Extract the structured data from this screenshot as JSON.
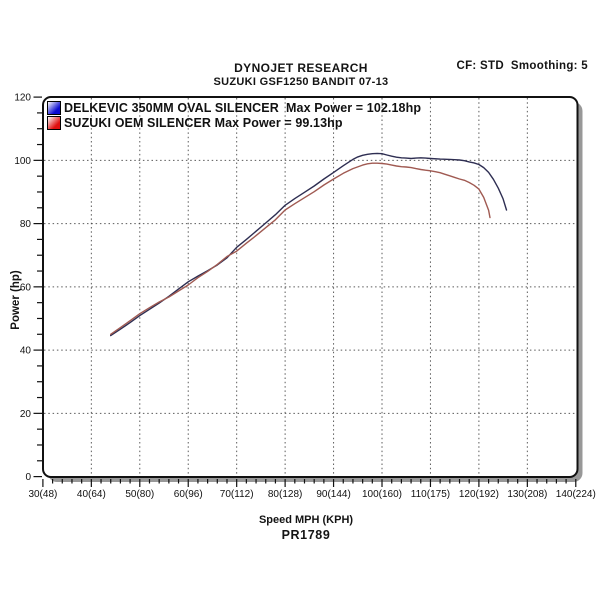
{
  "header": {
    "title": "DYNOJET RESEARCH",
    "subtitle": "SUZUKI GSF1250 BANDIT 07-13",
    "settings": "CF: STD  Smoothing: 5"
  },
  "footer": {
    "plot_id": "PR1789"
  },
  "chart_data": {
    "type": "line",
    "title": "DYNOJET RESEARCH",
    "subtitle": "SUZUKI GSF1250 BANDIT 07-13",
    "xlabel": "Speed MPH (KPH)",
    "ylabel": "Power (hp)",
    "xlim": [
      30,
      140
    ],
    "ylim": [
      0,
      120
    ],
    "grid": {
      "style": "dashed",
      "x_major_step_mph": 10,
      "y_major_step_hp": 20
    },
    "x_minor_tick_step_mph": 2,
    "y_minor_tick_step_hp": 5,
    "legend_position": "top-left-inside",
    "x_ticks": [
      {
        "value": 30,
        "label": "30(48)"
      },
      {
        "value": 40,
        "label": "40(64)"
      },
      {
        "value": 50,
        "label": "50(80)"
      },
      {
        "value": 60,
        "label": "60(96)"
      },
      {
        "value": 70,
        "label": "70(112)"
      },
      {
        "value": 80,
        "label": "80(128)"
      },
      {
        "value": 90,
        "label": "90(144)"
      },
      {
        "value": 100,
        "label": "100(160)"
      },
      {
        "value": 110,
        "label": "110(175)"
      },
      {
        "value": 120,
        "label": "120(192)"
      },
      {
        "value": 130,
        "label": "130(208)"
      },
      {
        "value": 140,
        "label": "140(224)"
      }
    ],
    "y_ticks": [
      0,
      20,
      40,
      60,
      80,
      100,
      120
    ],
    "series": [
      {
        "name": "DELKEVIC 350MM OVAL SILENCER",
        "legend_label": "DELKEVIC 350MM OVAL SILENCER  Max Power = 102.18hp",
        "max_power_hp": 102.18,
        "line_color": "#2e2e52",
        "marker_color": "#0a0ad0",
        "points_mph_hp": [
          [
            44,
            44.6
          ],
          [
            46,
            46.6
          ],
          [
            48,
            48.7
          ],
          [
            50,
            50.9
          ],
          [
            52,
            52.9
          ],
          [
            54,
            54.9
          ],
          [
            56,
            57.0
          ],
          [
            58,
            59.3
          ],
          [
            60,
            61.6
          ],
          [
            62,
            63.4
          ],
          [
            64,
            65.1
          ],
          [
            66,
            66.9
          ],
          [
            68,
            69.2
          ],
          [
            70,
            72.5
          ],
          [
            72,
            75.0
          ],
          [
            74,
            77.6
          ],
          [
            76,
            80.2
          ],
          [
            78,
            82.8
          ],
          [
            80,
            85.8
          ],
          [
            82,
            87.9
          ],
          [
            84,
            89.9
          ],
          [
            86,
            91.9
          ],
          [
            88,
            94.1
          ],
          [
            90,
            96.2
          ],
          [
            92,
            98.3
          ],
          [
            94,
            100.3
          ],
          [
            95,
            101.1
          ],
          [
            96,
            101.6
          ],
          [
            97,
            101.9
          ],
          [
            98,
            102.1
          ],
          [
            99,
            102.2
          ],
          [
            100,
            102.1
          ],
          [
            101,
            101.7
          ],
          [
            102,
            101.3
          ],
          [
            103,
            101.0
          ],
          [
            104,
            100.8
          ],
          [
            105,
            100.7
          ],
          [
            106,
            100.6
          ],
          [
            107,
            100.7
          ],
          [
            108,
            100.8
          ],
          [
            109,
            100.7
          ],
          [
            110,
            100.6
          ],
          [
            112,
            100.4
          ],
          [
            114,
            100.3
          ],
          [
            115,
            100.2
          ],
          [
            116,
            100.1
          ],
          [
            117,
            99.9
          ],
          [
            118,
            99.5
          ],
          [
            119,
            99.2
          ],
          [
            120,
            98.7
          ],
          [
            121,
            97.7
          ],
          [
            122,
            96.2
          ],
          [
            123,
            94.0
          ],
          [
            124,
            91.2
          ],
          [
            125,
            87.8
          ],
          [
            125.7,
            84.3
          ]
        ]
      },
      {
        "name": "SUZUKI OEM SILENCER",
        "legend_label": "SUZUKI OEM SILENCER Max Power = 99.13hp",
        "max_power_hp": 99.13,
        "line_color": "#a05a52",
        "marker_color": "#e01010",
        "points_mph_hp": [
          [
            44,
            45.0
          ],
          [
            46,
            47.1
          ],
          [
            48,
            49.3
          ],
          [
            50,
            51.5
          ],
          [
            52,
            53.4
          ],
          [
            54,
            55.2
          ],
          [
            56,
            56.8
          ],
          [
            58,
            58.7
          ],
          [
            60,
            60.6
          ],
          [
            62,
            62.9
          ],
          [
            64,
            64.9
          ],
          [
            66,
            67.1
          ],
          [
            68,
            69.6
          ],
          [
            70,
            71.3
          ],
          [
            72,
            73.8
          ],
          [
            74,
            76.2
          ],
          [
            76,
            78.7
          ],
          [
            78,
            81.2
          ],
          [
            80,
            84.3
          ],
          [
            82,
            86.3
          ],
          [
            84,
            88.2
          ],
          [
            86,
            90.1
          ],
          [
            88,
            92.2
          ],
          [
            90,
            94.1
          ],
          [
            92,
            95.9
          ],
          [
            94,
            97.4
          ],
          [
            96,
            98.5
          ],
          [
            97,
            98.9
          ],
          [
            98,
            99.1
          ],
          [
            99,
            99.1
          ],
          [
            100,
            99.0
          ],
          [
            101,
            98.8
          ],
          [
            102,
            98.5
          ],
          [
            103,
            98.2
          ],
          [
            104,
            98.0
          ],
          [
            105,
            97.9
          ],
          [
            106,
            97.7
          ],
          [
            107,
            97.4
          ],
          [
            108,
            97.1
          ],
          [
            109,
            96.9
          ],
          [
            110,
            96.7
          ],
          [
            111,
            96.4
          ],
          [
            112,
            96.1
          ],
          [
            113,
            95.6
          ],
          [
            114,
            95.1
          ],
          [
            115,
            94.6
          ],
          [
            116,
            94.1
          ],
          [
            117,
            93.7
          ],
          [
            118,
            93.0
          ],
          [
            119,
            92.1
          ],
          [
            120,
            90.9
          ],
          [
            121,
            88.3
          ],
          [
            122,
            84.2
          ],
          [
            122.3,
            81.9
          ]
        ]
      }
    ]
  }
}
